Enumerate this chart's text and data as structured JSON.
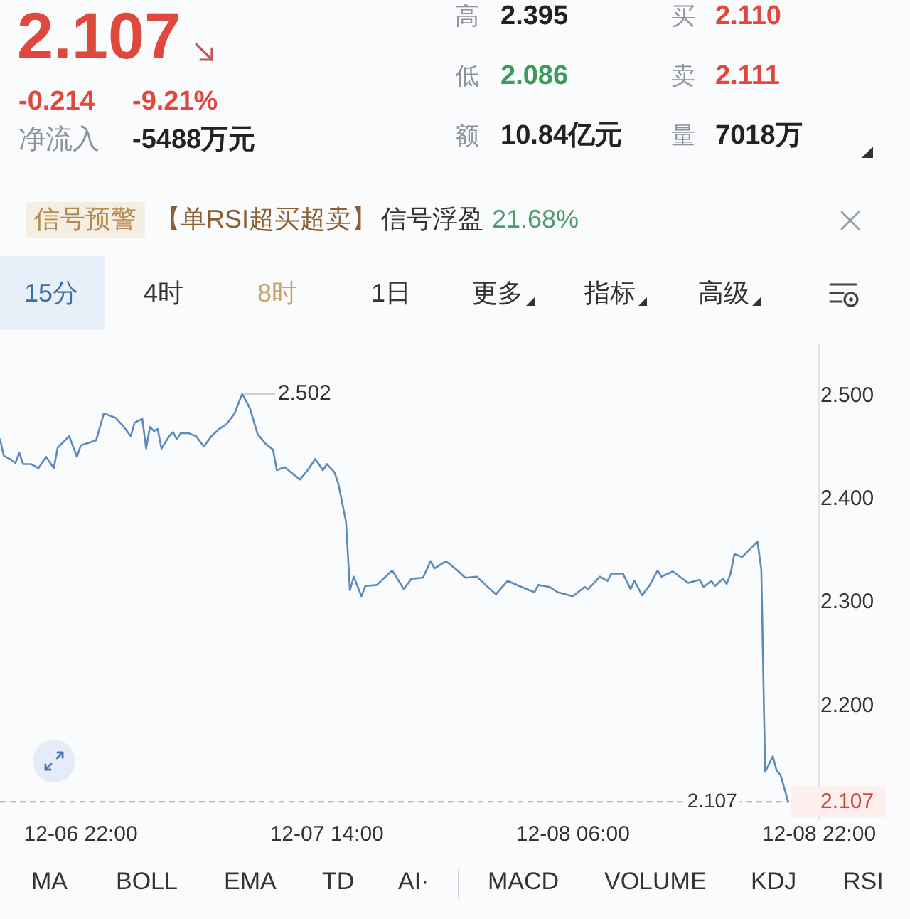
{
  "chart_data": [
    {
      "type": "other",
      "annotations": [
        "2.107",
        "-0.214",
        "-9.21%",
        "净流入",
        "-5488万元",
        "高",
        "2.395",
        "买",
        "2.110",
        "低",
        "2.086",
        "卖",
        "2.111",
        "额",
        "10.84亿元",
        "量",
        "7018万",
        "信号预警",
        "【单RSI超买超卖】",
        "信号浮盈",
        "21.68%",
        "15分",
        "4时",
        "8时",
        "1日",
        "更多",
        "指标",
        "高级"
      ]
    },
    {
      "type": "line",
      "color": "#5d8ab8",
      "x": [
        "--12-06T16:45",
        "--12-06T17:00",
        "--12-06T17:30",
        "--12-06T17:45",
        "--12-06T18:00",
        "--12-06T18:15",
        "--12-06T18:45",
        "--12-06T19:15",
        "--12-06T19:45",
        "--12-06T20:15",
        "--12-06T20:30",
        "--12-06T21:15",
        "--12-06T21:45",
        "--12-06T22:00",
        "--12-06T23:00",
        "--12-06T23:30",
        "--12-07T00:15",
        "--12-07T00:45",
        "--12-07T01:15",
        "--12-07T01:30",
        "--12-07T02:00",
        "--12-07T02:15",
        "--12-07T02:30",
        "--12-07T02:45",
        "--12-07T03:00",
        "--12-07T03:15",
        "--12-07T03:45",
        "--12-07T04:00",
        "--12-07T04:15",
        "--12-07T04:30",
        "--12-07T05:00",
        "--12-07T05:30",
        "--12-07T06:00",
        "--12-07T06:30",
        "--12-07T07:00",
        "--12-07T07:30",
        "--12-07T08:00",
        "--12-07T08:30",
        "--12-07T09:00",
        "--12-07T09:30",
        "--12-07T10:00",
        "--12-07T10:30",
        "--12-07T10:45",
        "--12-07T11:15",
        "--12-07T12:15",
        "--12-07T12:45",
        "--12-07T13:15",
        "--12-07T13:45",
        "--12-07T14:00",
        "--12-07T14:30",
        "--12-07T14:45",
        "--12-07T15:15",
        "--12-07T15:30",
        "--12-07T15:45",
        "--12-07T16:15",
        "--12-07T16:30",
        "--12-07T17:15",
        "--12-07T18:15",
        "--12-07T19:00",
        "--12-07T19:30",
        "--12-07T20:15",
        "--12-07T20:45",
        "--12-07T21:00",
        "--12-07T21:45",
        "--12-07T22:30",
        "--12-07T23:00",
        "--12-07T23:45",
        "--12-08T00:15",
        "--12-08T01:00",
        "--12-08T01:45",
        "--12-08T02:30",
        "--12-08T03:30",
        "--12-08T03:45",
        "--12-08T04:30",
        "--12-08T05:00",
        "--12-08T06:00",
        "--12-08T06:45",
        "--12-08T07:00",
        "--12-08T07:45",
        "--12-08T08:15",
        "--12-08T08:30",
        "--12-08T09:15",
        "--12-08T09:45",
        "--12-08T10:00",
        "--12-08T10:30",
        "--12-08T11:00",
        "--12-08T11:30",
        "--12-08T11:45",
        "--12-08T12:30",
        "--12-08T13:30",
        "--12-08T14:15",
        "--12-08T14:30",
        "--12-08T15:00",
        "--12-08T15:15",
        "--12-08T15:45",
        "--12-08T16:00",
        "--12-08T16:15",
        "--12-08T16:30",
        "--12-08T17:00",
        "--12-08T18:00",
        "--12-08T18:15",
        "--12-08T18:30",
        "--12-08T19:00",
        "--12-08T19:15",
        "--12-08T19:30",
        "--12-08T20:00"
      ],
      "values": [
        2.458,
        2.442,
        2.438,
        2.435,
        2.445,
        2.434,
        2.434,
        2.43,
        2.441,
        2.43,
        2.45,
        2.461,
        2.441,
        2.452,
        2.457,
        2.483,
        2.479,
        2.471,
        2.461,
        2.474,
        2.478,
        2.449,
        2.47,
        2.466,
        2.468,
        2.449,
        2.461,
        2.465,
        2.458,
        2.464,
        2.464,
        2.461,
        2.451,
        2.461,
        2.468,
        2.473,
        2.483,
        2.502,
        2.488,
        2.463,
        2.454,
        2.448,
        2.428,
        2.431,
        2.419,
        2.428,
        2.439,
        2.428,
        2.434,
        2.426,
        2.415,
        2.378,
        2.312,
        2.325,
        2.306,
        2.316,
        2.317,
        2.331,
        2.313,
        2.323,
        2.324,
        2.34,
        2.333,
        2.34,
        2.331,
        2.324,
        2.325,
        2.318,
        2.308,
        2.321,
        2.316,
        2.31,
        2.317,
        2.315,
        2.31,
        2.306,
        2.315,
        2.313,
        2.325,
        2.321,
        2.328,
        2.328,
        2.313,
        2.321,
        2.307,
        2.317,
        2.331,
        2.325,
        2.33,
        2.319,
        2.322,
        2.315,
        2.321,
        2.316,
        2.323,
        2.318,
        2.328,
        2.347,
        2.344,
        2.359,
        2.332,
        2.136,
        2.151,
        2.137,
        2.133,
        2.107
      ],
      "xlim": [
        "--12-06T16:45",
        "--12-08T22:00"
      ],
      "xticks": [
        {
          "value": "--12-06T22:00",
          "label": "12-06 22:00"
        },
        {
          "value": "--12-07T14:00",
          "label": "12-07 14:00"
        },
        {
          "value": "--12-08T06:00",
          "label": "12-08 06:00"
        },
        {
          "value": "--12-08T22:00",
          "label": "12-08 22:00"
        }
      ],
      "ylim": [
        2.09,
        2.55
      ],
      "yticks": [
        {
          "value": 2.2,
          "label": "2.200"
        },
        {
          "value": 2.3,
          "label": "2.300"
        },
        {
          "value": 2.4,
          "label": "2.400"
        },
        {
          "value": 2.5,
          "label": "2.500"
        }
      ],
      "ref_lines": [
        {
          "axis": "y",
          "value": 2.107,
          "label": "2.107",
          "color": "#a3a8b0",
          "line_style": "dashed"
        }
      ],
      "annotations": [
        {
          "text": "2.502",
          "x": "--12-07T08:30",
          "y": 2.502
        },
        {
          "text": "2.107",
          "x": "--12-08T20:00",
          "y": 2.107
        }
      ]
    },
    {
      "type": "other",
      "annotations": [
        "MA",
        "BOLL",
        "EMA",
        "TD",
        "AI·",
        "MACD",
        "VOLUME",
        "KDJ",
        "RSI"
      ]
    }
  ]
}
